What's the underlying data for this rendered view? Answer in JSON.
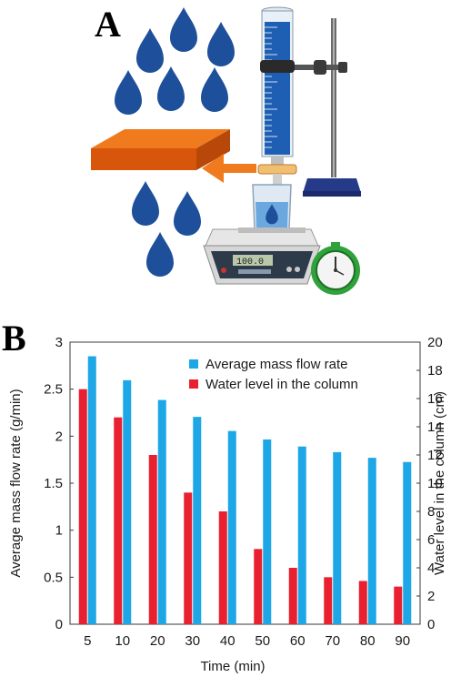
{
  "panels": {
    "a_label": "A",
    "b_label": "B"
  },
  "scale_display": "100.0",
  "colors": {
    "drop": "#1e4f9b",
    "plate_top": "#f07a1e",
    "plate_front": "#d8560c",
    "arrow": "#f07a1e",
    "water": "#1e5fb4",
    "stand": "#263a8a",
    "timer": "#2fa23a",
    "series_mass_flow": "#1da7e6",
    "series_water_level": "#e8202f"
  },
  "chart_data": {
    "type": "bar",
    "categories": [
      "5",
      "10",
      "20",
      "30",
      "40",
      "50",
      "60",
      "70",
      "80",
      "90"
    ],
    "xlabel": "Time (min)",
    "ylabel": "Average mass flow rate (g/min)",
    "y2label": "Water level in the column (cm)",
    "ylim": [
      0,
      3
    ],
    "y2lim": [
      0,
      20
    ],
    "yticks": [
      "0",
      "0.5",
      "1",
      "1.5",
      "2",
      "2.5",
      "3"
    ],
    "y2ticks": [
      "0",
      "2",
      "4",
      "6",
      "8",
      "10",
      "12",
      "14",
      "16",
      "18",
      "20"
    ],
    "legend_position": "top-right",
    "series": [
      {
        "name": "Average mass flow rate",
        "axis": "right",
        "color": "#1da7e6",
        "values": [
          19.0,
          17.3,
          15.9,
          14.7,
          13.7,
          13.1,
          12.6,
          12.2,
          11.8,
          11.5
        ]
      },
      {
        "name": "Water level in the column",
        "axis": "left",
        "color": "#e8202f",
        "values": [
          2.5,
          2.2,
          1.8,
          1.4,
          1.2,
          0.8,
          0.6,
          0.5,
          0.46,
          0.4
        ]
      }
    ]
  }
}
